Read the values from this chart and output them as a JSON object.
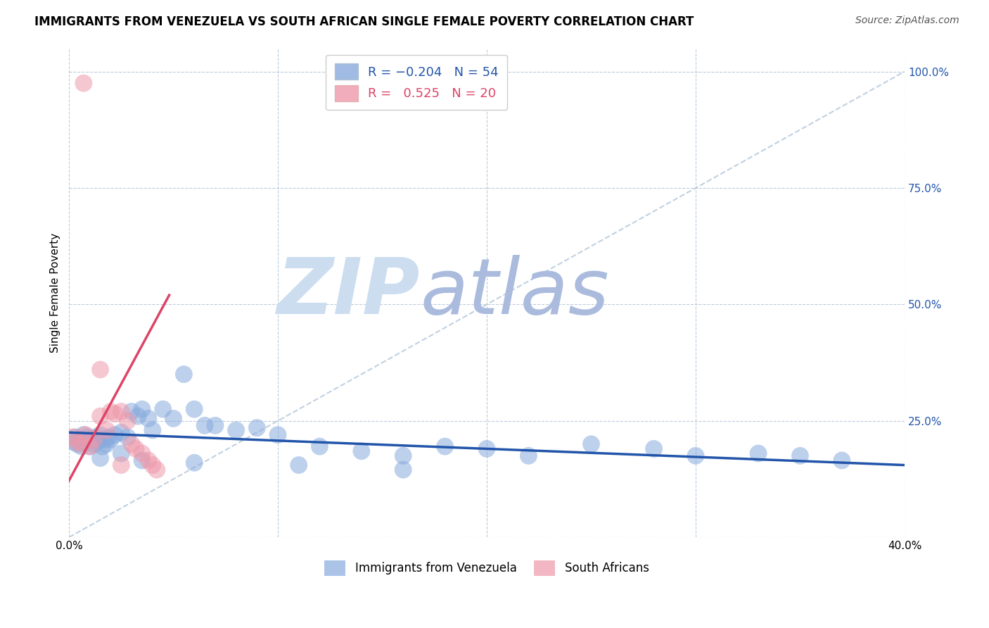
{
  "title": "IMMIGRANTS FROM VENEZUELA VS SOUTH AFRICAN SINGLE FEMALE POVERTY CORRELATION CHART",
  "source": "Source: ZipAtlas.com",
  "ylabel": "Single Female Poverty",
  "xlim": [
    0.0,
    0.4
  ],
  "ylim": [
    0.0,
    1.05
  ],
  "yticks": [
    0.0,
    0.25,
    0.5,
    0.75,
    1.0
  ],
  "ytick_labels_right": [
    "",
    "25.0%",
    "50.0%",
    "75.0%",
    "100.0%"
  ],
  "xticks": [
    0.0,
    0.1,
    0.2,
    0.3,
    0.4
  ],
  "xtick_labels": [
    "0.0%",
    "",
    "",
    "",
    "40.0%"
  ],
  "blue_color": "#88AADD",
  "pink_color": "#EE99AA",
  "blue_line_color": "#2255AA",
  "pink_line_color": "#DD4466",
  "diag_line_color": "#BBCCDD",
  "grid_color": "#BBCCDD",
  "watermark_zip": "ZIP",
  "watermark_atlas": "atlas",
  "watermark_color_zip": "#CCDDF0",
  "watermark_color_atlas": "#AABBDD",
  "background_color": "#FFFFFF",
  "title_fontsize": 12,
  "source_fontsize": 10,
  "tick_fontsize": 11,
  "legend_fontsize": 13,
  "blue_scatter_x": [
    0.002,
    0.003,
    0.004,
    0.005,
    0.006,
    0.007,
    0.008,
    0.009,
    0.01,
    0.011,
    0.012,
    0.013,
    0.014,
    0.015,
    0.016,
    0.017,
    0.018,
    0.019,
    0.02,
    0.022,
    0.025,
    0.028,
    0.03,
    0.033,
    0.035,
    0.038,
    0.04,
    0.045,
    0.05,
    0.055,
    0.06,
    0.065,
    0.07,
    0.08,
    0.09,
    0.1,
    0.12,
    0.14,
    0.16,
    0.18,
    0.2,
    0.22,
    0.25,
    0.28,
    0.3,
    0.33,
    0.35,
    0.37,
    0.015,
    0.025,
    0.035,
    0.06,
    0.11,
    0.16
  ],
  "blue_scatter_y": [
    0.205,
    0.215,
    0.2,
    0.21,
    0.195,
    0.22,
    0.205,
    0.215,
    0.195,
    0.21,
    0.2,
    0.215,
    0.205,
    0.22,
    0.195,
    0.21,
    0.2,
    0.215,
    0.21,
    0.22,
    0.225,
    0.215,
    0.27,
    0.26,
    0.275,
    0.255,
    0.23,
    0.275,
    0.255,
    0.35,
    0.275,
    0.24,
    0.24,
    0.23,
    0.235,
    0.22,
    0.195,
    0.185,
    0.175,
    0.195,
    0.19,
    0.175,
    0.2,
    0.19,
    0.175,
    0.18,
    0.175,
    0.165,
    0.17,
    0.18,
    0.165,
    0.16,
    0.155,
    0.145
  ],
  "pink_scatter_x": [
    0.002,
    0.004,
    0.006,
    0.008,
    0.01,
    0.012,
    0.015,
    0.018,
    0.02,
    0.022,
    0.025,
    0.028,
    0.03,
    0.032,
    0.035,
    0.038,
    0.04,
    0.042,
    0.015,
    0.025
  ],
  "pink_scatter_y": [
    0.215,
    0.205,
    0.2,
    0.22,
    0.195,
    0.21,
    0.26,
    0.23,
    0.27,
    0.265,
    0.27,
    0.25,
    0.2,
    0.19,
    0.18,
    0.165,
    0.155,
    0.145,
    0.36,
    0.155
  ],
  "pink_high_x": [
    0.007
  ],
  "pink_high_y": [
    0.975
  ],
  "blue_trend_x": [
    0.0,
    0.4
  ],
  "blue_trend_y": [
    0.225,
    0.155
  ],
  "pink_trend_x": [
    -0.005,
    0.048
  ],
  "pink_trend_y": [
    0.08,
    0.52
  ],
  "diag_line_x": [
    0.0,
    0.4
  ],
  "diag_line_y": [
    0.0,
    1.0
  ]
}
